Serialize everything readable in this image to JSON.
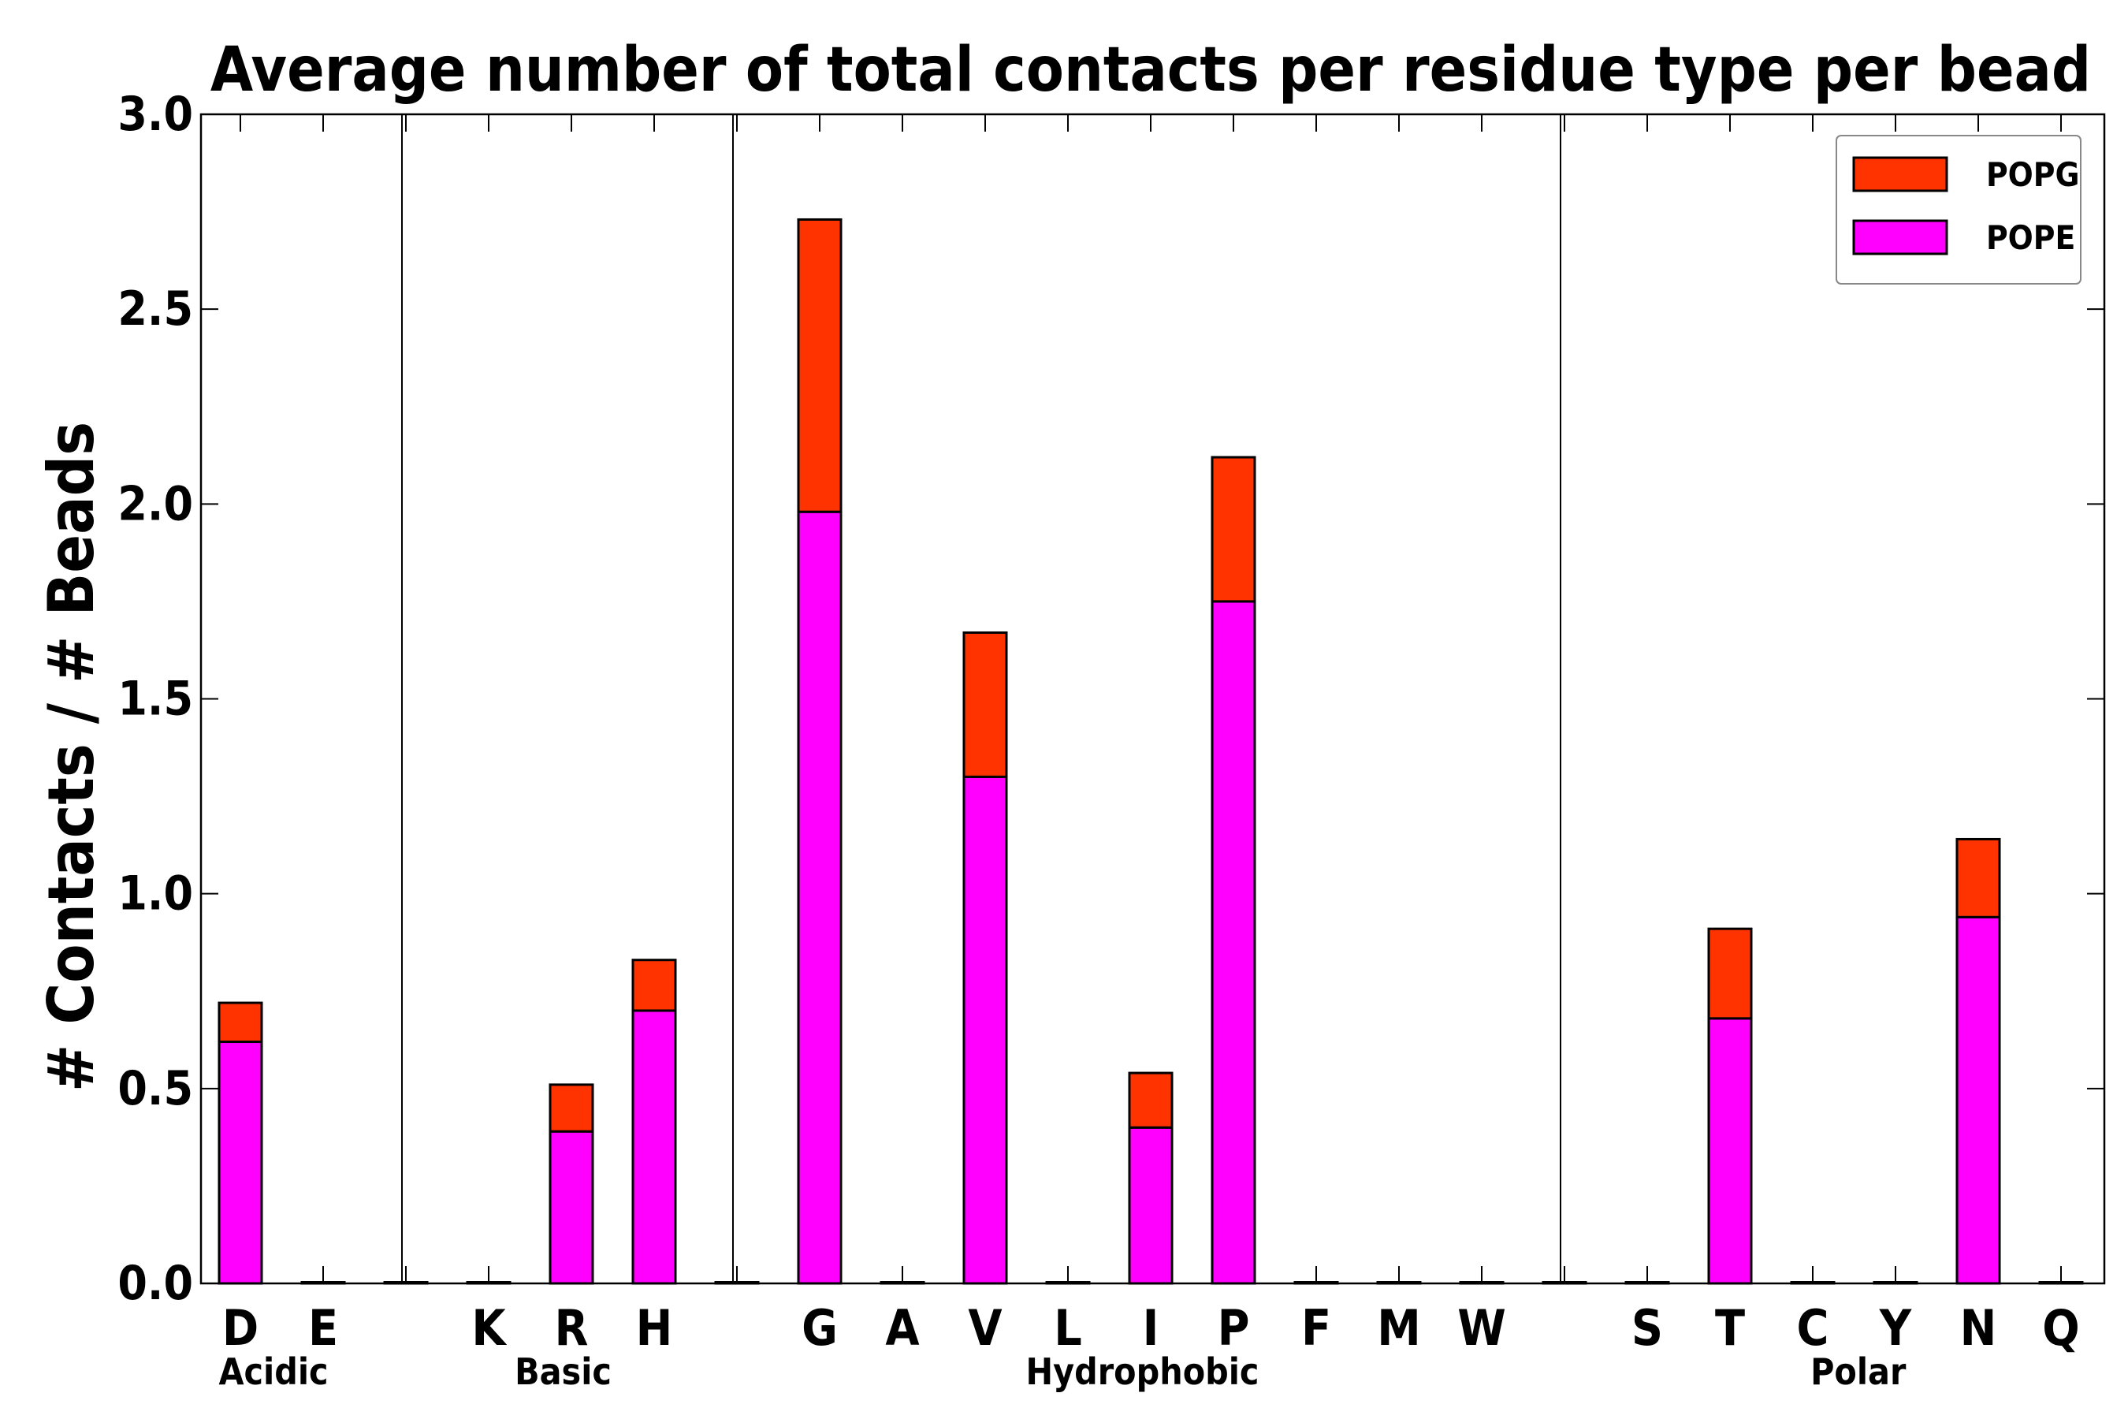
{
  "chart_data": {
    "type": "bar",
    "stacked": true,
    "title": "Average number of total contacts per residue type per bead",
    "xlabel": "",
    "ylabel": "# Contacts / # Beads",
    "ylim": [
      0,
      3.0
    ],
    "yticks": [
      "0.0",
      "0.5",
      "1.0",
      "1.5",
      "2.0",
      "2.5",
      "3.0"
    ],
    "categories": [
      "D",
      "E",
      "",
      "K",
      "R",
      "H",
      "",
      "G",
      "A",
      "V",
      "L",
      "I",
      "P",
      "F",
      "M",
      "W",
      "",
      "S",
      "T",
      "C",
      "Y",
      "N",
      "Q"
    ],
    "series": [
      {
        "name": "POPE",
        "color": "#ff00ff",
        "values": [
          0.62,
          0,
          0,
          0,
          0.39,
          0.7,
          0,
          1.98,
          0,
          1.3,
          0,
          0.4,
          1.75,
          0,
          0,
          0,
          0,
          0,
          0.68,
          0,
          0,
          0.94,
          0
        ]
      },
      {
        "name": "POPG",
        "color": "#ff3300",
        "values": [
          0.1,
          0,
          0,
          0,
          0.12,
          0.13,
          0,
          0.75,
          0,
          0.37,
          0,
          0.14,
          0.37,
          0,
          0,
          0,
          0,
          0,
          0.23,
          0,
          0,
          0.2,
          0
        ]
      }
    ],
    "groups": [
      {
        "label": "Acidic",
        "anchor_category": 0,
        "offset": 0.4
      },
      {
        "label": "Basic",
        "anchor_category": 4,
        "offset": -0.1
      },
      {
        "label": "Hydrophobic",
        "anchor_category": 11,
        "offset": -0.1
      },
      {
        "label": "Polar",
        "anchor_category": 20,
        "offset": -0.45
      }
    ],
    "separators_after_category": [
      2,
      6,
      16
    ],
    "legend": {
      "position": "top-right",
      "entries": [
        {
          "label": "POPG",
          "color": "#ff3300"
        },
        {
          "label": "POPE",
          "color": "#ff00ff"
        }
      ]
    }
  }
}
